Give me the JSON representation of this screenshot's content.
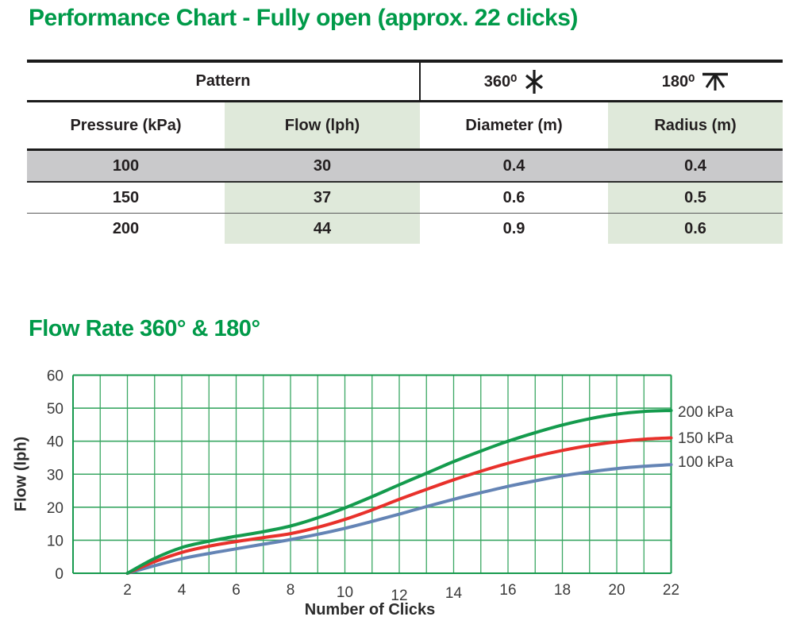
{
  "page": {
    "title": "Performance Chart - Fully open (approx. 22 clicks)"
  },
  "table": {
    "pattern_label": "Pattern",
    "col_360_label": "360⁰",
    "col_180_label": "180⁰",
    "headers": [
      "Pressure (kPa)",
      "Flow (lph)",
      "Diameter (m)",
      "Radius (m)"
    ],
    "rows": [
      {
        "pressure": "100",
        "flow": "30",
        "diameter": "0.4",
        "radius": "0.4"
      },
      {
        "pressure": "150",
        "flow": "37",
        "diameter": "0.6",
        "radius": "0.5"
      },
      {
        "pressure": "200",
        "flow": "44",
        "diameter": "0.9",
        "radius": "0.6"
      }
    ]
  },
  "section2": {
    "title": "Flow Rate 360° & 180°"
  },
  "chart_data": {
    "type": "line",
    "title": "Flow Rate 360° & 180°",
    "xlabel": "Number of Clicks",
    "ylabel": "Flow (lph)",
    "xlim": [
      0,
      22
    ],
    "ylim": [
      0,
      60
    ],
    "x_ticks": [
      2,
      4,
      6,
      8,
      10,
      12,
      14,
      16,
      18,
      20,
      22
    ],
    "y_ticks": [
      0,
      10,
      20,
      30,
      40,
      50,
      60
    ],
    "grid": "on",
    "grid_x_step": 1,
    "grid_y_step": 10,
    "legend_position": "right-of-lines",
    "x": [
      2,
      3,
      4,
      5,
      6,
      7,
      8,
      9,
      10,
      11,
      12,
      13,
      14,
      15,
      16,
      17,
      18,
      19,
      20,
      21,
      22
    ],
    "series": [
      {
        "name": "200 kPa",
        "color": "#149b4d",
        "values": [
          0,
          4.5,
          7.8,
          9.7,
          11.2,
          12.6,
          14.3,
          16.8,
          19.8,
          23.2,
          26.8,
          30.3,
          33.8,
          37,
          40,
          42.6,
          44.9,
          46.8,
          48.2,
          49,
          49.3
        ]
      },
      {
        "name": "150 kPa",
        "color": "#e8312b",
        "values": [
          0,
          3.5,
          6.3,
          8.2,
          9.6,
          10.8,
          12,
          13.9,
          16.3,
          19.2,
          22.4,
          25.4,
          28.3,
          30.9,
          33.3,
          35.4,
          37.2,
          38.7,
          39.8,
          40.6,
          41
        ]
      },
      {
        "name": "100 kPa",
        "color": "#6484b5",
        "values": [
          0,
          2.3,
          4.4,
          6,
          7.4,
          8.8,
          10.2,
          11.8,
          13.6,
          15.7,
          17.9,
          20.2,
          22.4,
          24.4,
          26.3,
          28,
          29.5,
          30.7,
          31.7,
          32.4,
          32.9
        ]
      }
    ]
  },
  "colors": {
    "accent_green": "#009a49",
    "table_row_gray": "#c9c9cb",
    "table_cell_green": "#dfe9da",
    "grid_green": "#3aa763",
    "grid_border_green": "#189a4e",
    "text_dark": "#231f20"
  }
}
